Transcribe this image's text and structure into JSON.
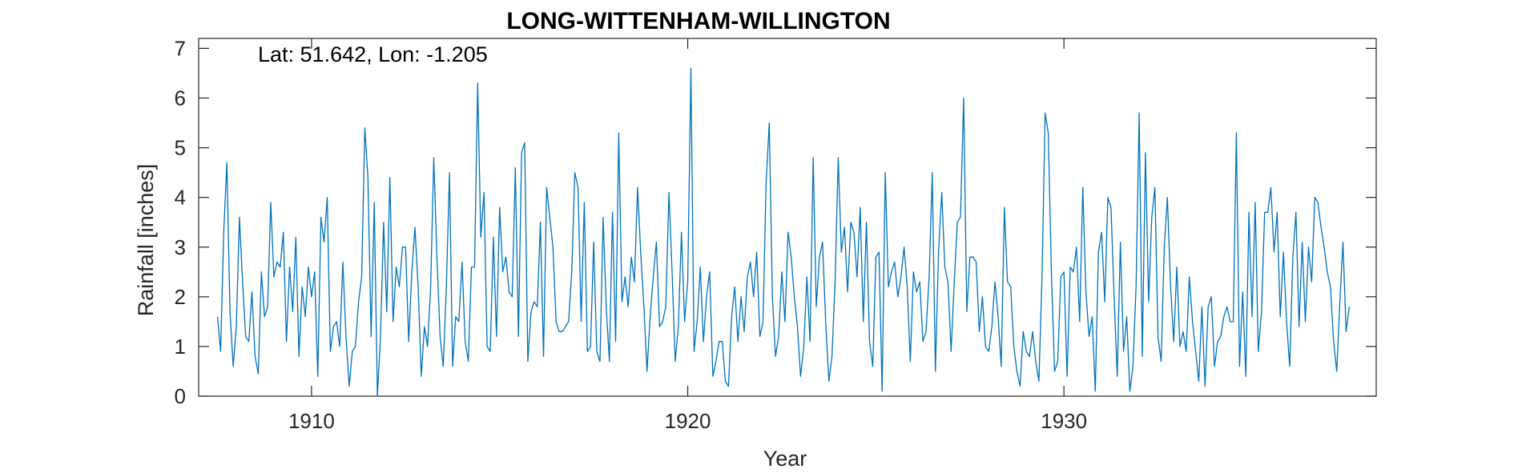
{
  "chart_data": {
    "type": "line",
    "title": "LONG-WITTENHAM-WILLINGTON",
    "xlabel": "Year",
    "ylabel": "Rainfall [inches]",
    "annotation": "Lat: 51.642, Lon: -1.205",
    "xlim": [
      1907.0,
      1938.3
    ],
    "ylim": [
      0,
      7.2
    ],
    "xticks": [
      1910,
      1920,
      1930
    ],
    "yticks": [
      0,
      1,
      2,
      3,
      4,
      5,
      6,
      7
    ],
    "grid": false,
    "series": [
      {
        "color": "#0072BD",
        "x_start": 1907.5,
        "x_step_months": 1,
        "values": [
          1.6,
          0.9,
          3.3,
          4.7,
          1.7,
          0.6,
          1.4,
          3.6,
          2.3,
          1.2,
          1.1,
          2.1,
          0.8,
          0.45,
          2.5,
          1.6,
          1.8,
          3.9,
          2.4,
          2.7,
          2.6,
          3.3,
          1.1,
          2.6,
          1.7,
          3.2,
          0.8,
          2.2,
          1.6,
          2.6,
          2.0,
          2.5,
          0.4,
          3.6,
          3.1,
          4.0,
          0.9,
          1.4,
          1.5,
          1.0,
          2.7,
          1.2,
          0.2,
          0.9,
          1.0,
          1.9,
          2.4,
          5.4,
          4.4,
          1.2,
          3.9,
          0.0,
          1.2,
          3.5,
          1.7,
          4.4,
          1.5,
          2.6,
          2.2,
          3.0,
          3.0,
          1.1,
          2.5,
          3.4,
          2.2,
          0.4,
          1.4,
          1.0,
          2.2,
          4.8,
          2.8,
          1.2,
          0.6,
          2.2,
          4.5,
          0.6,
          1.6,
          1.5,
          2.7,
          1.1,
          0.7,
          2.6,
          2.6,
          6.3,
          3.2,
          4.1,
          1.0,
          0.9,
          3.2,
          1.2,
          3.8,
          2.5,
          2.8,
          2.1,
          2.0,
          4.6,
          1.2,
          4.9,
          5.1,
          0.7,
          1.7,
          1.9,
          1.8,
          3.5,
          0.8,
          4.2,
          3.6,
          3.0,
          1.5,
          1.3,
          1.3,
          1.4,
          1.5,
          2.5,
          4.5,
          4.2,
          1.5,
          3.9,
          0.9,
          1.0,
          3.1,
          0.9,
          0.7,
          3.6,
          1.8,
          0.7,
          3.7,
          1.1,
          5.3,
          1.9,
          2.4,
          1.8,
          2.8,
          2.3,
          4.2,
          2.9,
          1.8,
          0.5,
          1.6,
          2.4,
          3.1,
          1.4,
          1.5,
          1.8,
          4.1,
          2.5,
          0.7,
          1.4,
          3.3,
          1.5,
          2.3,
          6.6,
          0.9,
          1.5,
          2.6,
          1.1,
          2.0,
          2.5,
          0.4,
          0.7,
          1.1,
          1.1,
          0.3,
          0.2,
          1.6,
          2.2,
          1.1,
          2.0,
          1.3,
          2.4,
          2.7,
          2.0,
          2.9,
          1.2,
          1.5,
          4.3,
          5.5,
          2.0,
          0.8,
          1.2,
          2.5,
          1.5,
          3.3,
          2.8,
          2.0,
          1.4,
          0.4,
          1.0,
          2.4,
          1.1,
          4.8,
          1.8,
          2.8,
          3.1,
          1.5,
          0.3,
          0.8,
          2.3,
          4.8,
          2.9,
          3.4,
          2.1,
          3.5,
          3.3,
          2.4,
          3.8,
          1.5,
          3.5,
          1.1,
          0.6,
          2.8,
          2.9,
          0.1,
          4.5,
          2.2,
          2.5,
          2.7,
          2.0,
          2.4,
          3.0,
          2.2,
          0.7,
          2.5,
          2.1,
          2.3,
          1.1,
          1.3,
          2.4,
          4.5,
          0.5,
          2.9,
          4.1,
          2.6,
          2.3,
          0.9,
          2.3,
          3.5,
          3.6,
          6.0,
          1.7,
          2.8,
          2.8,
          2.7,
          1.3,
          2.0,
          1.0,
          0.9,
          1.4,
          2.3,
          1.6,
          0.6,
          3.8,
          2.3,
          2.2,
          1.0,
          0.5,
          0.2,
          1.3,
          0.9,
          0.8,
          1.3,
          0.7,
          0.3,
          2.4,
          5.7,
          5.3,
          2.5,
          0.5,
          0.7,
          2.4,
          2.5,
          0.4,
          2.6,
          2.5,
          3.0,
          1.5,
          4.2,
          2.1,
          1.2,
          1.6,
          0.1,
          2.9,
          3.3,
          1.9,
          4.0,
          3.8,
          2.0,
          0.4,
          3.1,
          0.9,
          1.6,
          0.1,
          0.6,
          2.2,
          5.7,
          0.8,
          4.9,
          1.9,
          3.6,
          4.2,
          1.2,
          0.7,
          3.0,
          4.0,
          2.2,
          1.1,
          2.6,
          1.0,
          1.3,
          0.9,
          2.4,
          1.5,
          0.9,
          0.3,
          1.8,
          0.2,
          1.8,
          2.0,
          0.6,
          1.1,
          1.2,
          1.6,
          1.8,
          1.5,
          1.5,
          5.3,
          0.6,
          2.1,
          0.4,
          3.7,
          1.6,
          3.9,
          0.9,
          1.7,
          3.7,
          3.7,
          4.2,
          2.9,
          3.7,
          1.6,
          2.9,
          1.5,
          0.6,
          2.8,
          3.7,
          1.4,
          3.1,
          1.5,
          3.0,
          2.3,
          4.0,
          3.9,
          3.4,
          3.0,
          2.5,
          2.2,
          1.1,
          0.5,
          1.9,
          3.1,
          1.3,
          1.8
        ]
      }
    ]
  }
}
